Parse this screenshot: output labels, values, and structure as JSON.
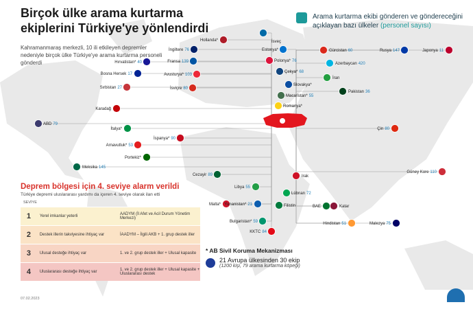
{
  "header": {
    "title": "Birçok ülke arama kurtarma ekiplerini Türkiye'ye yönlendirdi",
    "intro": "Kahramanmaraş merkezli, 10 ili etkileyen depremler nedeniyle birçok ülke Türkiye'ye arama kurtarma personeli gönderdi"
  },
  "legend": {
    "text": "Arama kurtarma ekibi gönderen ve göndereceğini açıklayan bazı ülkeler",
    "note": "(personel sayısı)"
  },
  "countries": [
    {
      "name": "İsveç"
    },
    {
      "name": "Hollanda*"
    },
    {
      "name": "İngiltere",
      "personnel": 76
    },
    {
      "name": "Estonya*"
    },
    {
      "name": "Gürcistan",
      "personnel": 60
    },
    {
      "name": "Rusya",
      "personnel": 147
    },
    {
      "name": "Japonya",
      "personnel": 11
    },
    {
      "name": "Hırvatistan*",
      "personnel": 40
    },
    {
      "name": "Fransa",
      "personnel": 139
    },
    {
      "name": "Polonya*",
      "personnel": 76
    },
    {
      "name": "Azerbaycan",
      "personnel": 420
    },
    {
      "name": "Bosna Hersek",
      "personnel": 17
    },
    {
      "name": "Avusturya*",
      "personnel": 103
    },
    {
      "name": "Çekya*",
      "personnel": 68
    },
    {
      "name": "İran"
    },
    {
      "name": "Sırbistan",
      "personnel": 27
    },
    {
      "name": "İsviçre",
      "personnel": 80
    },
    {
      "name": "Slovakya*"
    },
    {
      "name": "Pakistan",
      "personnel": 36
    },
    {
      "name": "Macaristan*",
      "personnel": 55
    },
    {
      "name": "Karadağ"
    },
    {
      "name": "Romanya*"
    },
    {
      "name": "Çin",
      "personnel": 80
    },
    {
      "name": "ABD",
      "personnel": 79
    },
    {
      "name": "İtalya*"
    },
    {
      "name": "Arnavutluk*",
      "personnel": 53
    },
    {
      "name": "İspanya*",
      "personnel": 90
    },
    {
      "name": "Portekiz*"
    },
    {
      "name": "Güney Kore",
      "personnel": 110
    },
    {
      "name": "Cezayir",
      "personnel": 89
    },
    {
      "name": "Libya",
      "personnel": 55
    },
    {
      "name": "Irak"
    },
    {
      "name": "Meksika",
      "personnel": 145
    },
    {
      "name": "Lübnan",
      "personnel": 72
    },
    {
      "name": "Malta*"
    },
    {
      "name": "Yunanistan*",
      "personnel": 21
    },
    {
      "name": "Filistin"
    },
    {
      "name": "BAE"
    },
    {
      "name": "Katar"
    },
    {
      "name": "Bulgaristan*",
      "personnel": 59
    },
    {
      "name": "KKTC",
      "personnel": 84
    },
    {
      "name": "Hindistan",
      "personnel": 51
    },
    {
      "name": "Malezya",
      "personnel": 75
    }
  ],
  "alarm": {
    "title": "Deprem bölgesi için 4. seviye alarm verildi",
    "subtitle": "Türkiye depremi uluslararası yardımı da içeren 4. seviye olarak ilan etti",
    "header": "SEVİYE",
    "rows": [
      {
        "level": 1,
        "need": "Yerel imkanlar yeterli",
        "response": "AADYM (İl Afet ve Acil Durum Yönetim Merkezi)"
      },
      {
        "level": 2,
        "need": "Destek illerin takviyesine ihtiyaç var",
        "response": "İAADYM – İlgili AKB + 1. grup destek iller"
      },
      {
        "level": 3,
        "need": "Ulusal desteğe ihtiyaç var",
        "response": "1. ve 2. grup destek iller + Ulusal kapasite"
      },
      {
        "level": 4,
        "need": "Uluslararası desteğe ihtiyaç var",
        "response": "1. ve 2. grup destek iller + Ulusal kapasite + Uluslararası destek"
      }
    ]
  },
  "eu": {
    "title": "* AB Sivil Koruma Mekanizması",
    "line": "21 Avrupa ülkesinden 30 ekip",
    "note": "(1200 kişi, 79 arama kurtarma köpeği)"
  },
  "footer": {
    "date": "07.02.2023"
  }
}
